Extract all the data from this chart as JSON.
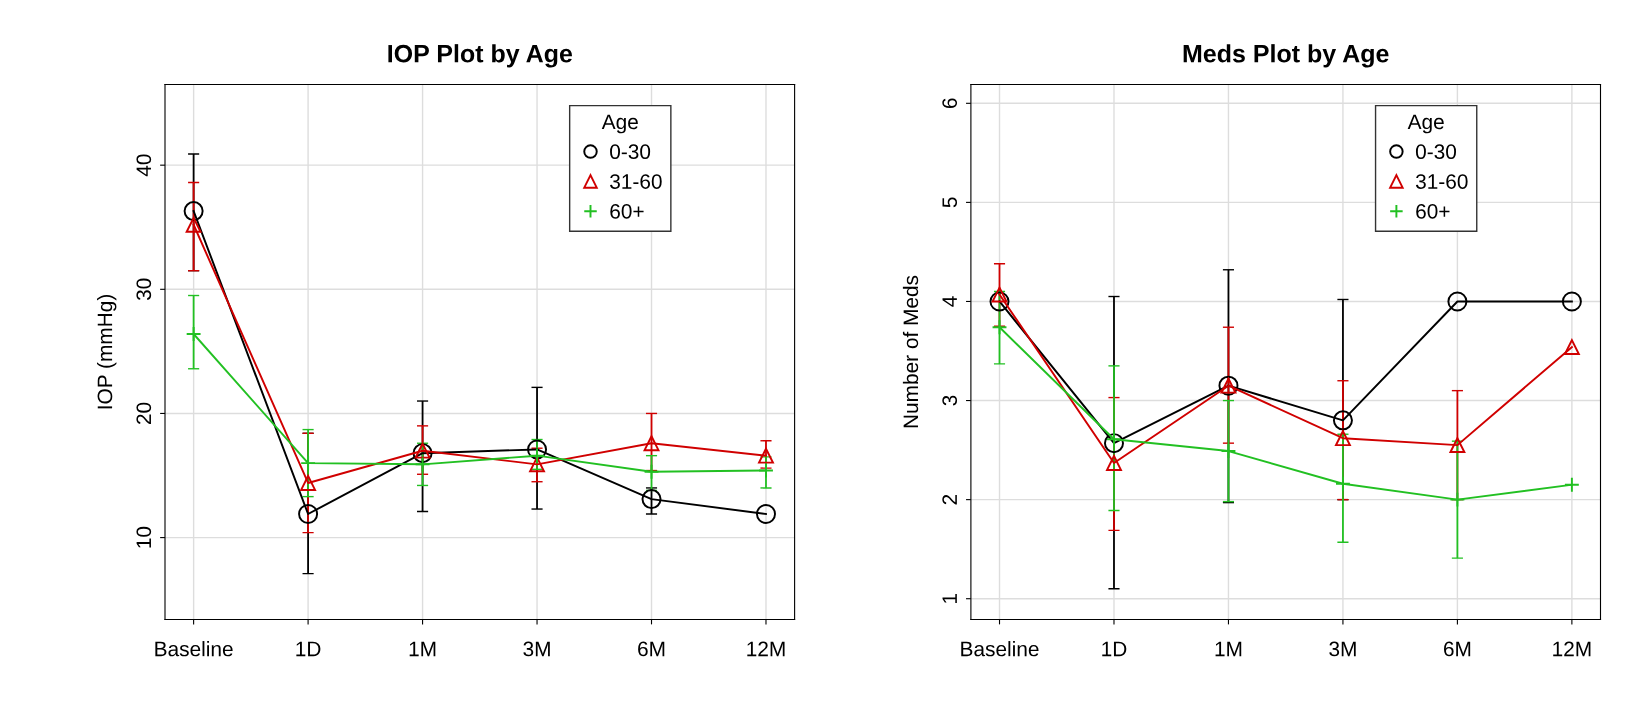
{
  "chart_data": [
    {
      "type": "line",
      "title": "IOP Plot by Age",
      "ylabel": "IOP (mmHg)",
      "categories": [
        "Baseline",
        "1D",
        "1M",
        "3M",
        "6M",
        "12M"
      ],
      "ylim": [
        3.4,
        46.5
      ],
      "yticks": [
        10,
        20,
        30,
        40
      ],
      "grid": true,
      "legend": "top right",
      "legend_title": "Age",
      "series": [
        {
          "name": "0-30",
          "color": "#000000",
          "marker": "circle",
          "values": [
            36.3,
            11.9,
            16.8,
            17.1,
            13.1,
            11.9
          ],
          "errors": [
            [
              31.5,
              40.9
            ],
            [
              7.1,
              18.4
            ],
            [
              12.1,
              21.0
            ],
            [
              12.3,
              22.1
            ],
            [
              11.9,
              14.0
            ],
            null
          ]
        },
        {
          "name": "31-60",
          "color": "#d00000",
          "marker": "triangle",
          "values": [
            35.2,
            14.4,
            17.0,
            15.9,
            17.6,
            16.6
          ],
          "errors": [
            [
              31.5,
              38.6
            ],
            [
              10.4,
              18.4
            ],
            [
              15.1,
              19.0
            ],
            [
              14.5,
              17.2
            ],
            [
              15.4,
              20.0
            ],
            [
              15.6,
              17.8
            ]
          ]
        },
        {
          "name": "60+",
          "color": "#22c022",
          "marker": "cross",
          "values": [
            26.4,
            16.0,
            15.9,
            16.6,
            15.3,
            15.4
          ],
          "errors": [
            [
              23.6,
              29.5
            ],
            [
              13.3,
              18.7
            ],
            [
              14.2,
              17.6
            ],
            [
              15.5,
              17.9
            ],
            [
              13.8,
              16.6
            ],
            [
              14.0,
              16.5
            ]
          ]
        }
      ]
    },
    {
      "type": "line",
      "title": "Meds Plot by Age",
      "ylabel": "Number of Meds",
      "categories": [
        "Baseline",
        "1D",
        "1M",
        "3M",
        "6M",
        "12M"
      ],
      "ylim": [
        0.79,
        6.19
      ],
      "yticks": [
        1,
        2,
        3,
        4,
        5,
        6
      ],
      "grid": true,
      "legend": "top right",
      "legend_title": "Age",
      "series": [
        {
          "name": "0-30",
          "color": "#000000",
          "marker": "circle",
          "values": [
            4.0,
            2.57,
            3.15,
            2.8,
            4.0,
            4.0
          ],
          "errors": [
            null,
            [
              1.1,
              4.05
            ],
            [
              1.97,
              4.32
            ],
            [
              2.0,
              4.02
            ],
            null,
            null
          ]
        },
        {
          "name": "31-60",
          "color": "#d00000",
          "marker": "triangle",
          "values": [
            4.07,
            2.37,
            3.15,
            2.62,
            2.55,
            3.54
          ],
          "errors": [
            [
              3.75,
              4.38
            ],
            [
              1.69,
              3.03
            ],
            [
              2.57,
              3.74
            ],
            [
              2.0,
              3.2
            ],
            [
              2.0,
              3.1
            ],
            null
          ]
        },
        {
          "name": "60+",
          "color": "#22c022",
          "marker": "cross",
          "values": [
            3.74,
            2.61,
            2.49,
            2.16,
            2.0,
            2.15
          ],
          "errors": [
            [
              3.37,
              4.1
            ],
            [
              1.89,
              3.35
            ],
            [
              1.98,
              3.0
            ],
            [
              1.57,
              2.66
            ],
            [
              1.41,
              2.59
            ],
            null
          ]
        }
      ]
    }
  ]
}
